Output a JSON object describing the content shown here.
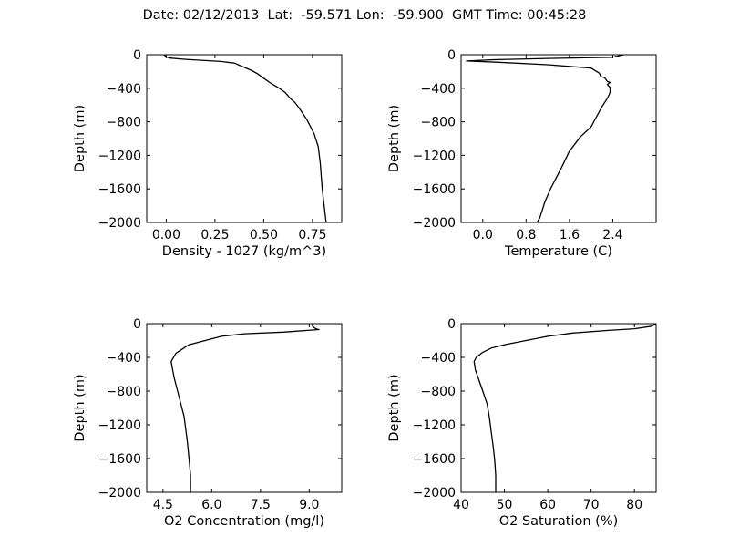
{
  "figure": {
    "title": "Date: 02/12/2013  Lat:  -59.571 Lon:  -59.900  GMT Time: 00:45:28"
  },
  "chart_data": [
    {
      "type": "line",
      "xlabel": "Density - 1027 (kg/m^3)",
      "ylabel": "Depth (m)",
      "xlim": [
        -0.1,
        0.9
      ],
      "ylim": [
        -2000,
        0
      ],
      "xticks": [
        0.0,
        0.25,
        0.5,
        0.75
      ],
      "xtick_labels": [
        "0.00",
        "0.25",
        "0.50",
        "0.75"
      ],
      "yticks": [
        0,
        -400,
        -800,
        -1200,
        -1600,
        -2000
      ],
      "ytick_labels": [
        "0",
        "−400",
        "−800",
        "−1200",
        "−1600",
        "−2000"
      ],
      "series": [
        {
          "color": "#000000",
          "points": [
            [
              -0.01,
              0
            ],
            [
              -0.01,
              -5
            ],
            [
              0.0,
              -25
            ],
            [
              0.02,
              -40
            ],
            [
              0.1,
              -55
            ],
            [
              0.17,
              -65
            ],
            [
              0.28,
              -80
            ],
            [
              0.35,
              -100
            ],
            [
              0.38,
              -130
            ],
            [
              0.44,
              -190
            ],
            [
              0.47,
              -230
            ],
            [
              0.5,
              -280
            ],
            [
              0.53,
              -330
            ],
            [
              0.58,
              -400
            ],
            [
              0.61,
              -450
            ],
            [
              0.64,
              -530
            ],
            [
              0.66,
              -570
            ],
            [
              0.68,
              -630
            ],
            [
              0.7,
              -700
            ],
            [
              0.72,
              -770
            ],
            [
              0.74,
              -860
            ],
            [
              0.76,
              -950
            ],
            [
              0.78,
              -1100
            ],
            [
              0.79,
              -1300
            ],
            [
              0.8,
              -1600
            ],
            [
              0.81,
              -1800
            ],
            [
              0.82,
              -2000
            ]
          ]
        }
      ]
    },
    {
      "type": "line",
      "xlabel": "Temperature (C)",
      "ylabel": "Depth (m)",
      "xlim": [
        -0.4,
        3.2
      ],
      "ylim": [
        -2000,
        0
      ],
      "xticks": [
        0.0,
        0.8,
        1.6,
        2.4
      ],
      "xtick_labels": [
        "0.0",
        "0.8",
        "1.6",
        "2.4"
      ],
      "yticks": [
        0,
        -400,
        -800,
        -1200,
        -1600,
        -2000
      ],
      "ytick_labels": [
        "0",
        "−400",
        "−800",
        "−1200",
        "−1600",
        "−2000"
      ],
      "series": [
        {
          "color": "#000000",
          "points": [
            [
              2.6,
              0
            ],
            [
              2.5,
              -15
            ],
            [
              2.4,
              -30
            ],
            [
              1.2,
              -45
            ],
            [
              0.2,
              -60
            ],
            [
              -0.3,
              -75
            ],
            [
              0.3,
              -90
            ],
            [
              1.2,
              -120
            ],
            [
              2.0,
              -160
            ],
            [
              2.15,
              -220
            ],
            [
              2.18,
              -260
            ],
            [
              2.25,
              -275
            ],
            [
              2.3,
              -320
            ],
            [
              2.35,
              -330
            ],
            [
              2.3,
              -355
            ],
            [
              2.35,
              -390
            ],
            [
              2.35,
              -450
            ],
            [
              2.3,
              -520
            ],
            [
              2.2,
              -620
            ],
            [
              2.1,
              -740
            ],
            [
              2.0,
              -860
            ],
            [
              1.8,
              -980
            ],
            [
              1.6,
              -1150
            ],
            [
              1.45,
              -1350
            ],
            [
              1.25,
              -1600
            ],
            [
              1.15,
              -1750
            ],
            [
              1.1,
              -1850
            ],
            [
              1.05,
              -1950
            ],
            [
              1.0,
              -2000
            ]
          ]
        }
      ]
    },
    {
      "type": "line",
      "xlabel": "O2 Concentration (mg/l)",
      "ylabel": "Depth (m)",
      "xlim": [
        4.0,
        10.0
      ],
      "ylim": [
        -2000,
        0
      ],
      "xticks": [
        4.5,
        6.0,
        7.5,
        9.0
      ],
      "xtick_labels": [
        "4.5",
        "6.0",
        "7.5",
        "9.0"
      ],
      "yticks": [
        0,
        -400,
        -800,
        -1200,
        -1600,
        -2000
      ],
      "ytick_labels": [
        "0",
        "−400",
        "−800",
        "−1200",
        "−1600",
        "−2000"
      ],
      "series": [
        {
          "color": "#000000",
          "points": [
            [
              9.1,
              0
            ],
            [
              9.1,
              -30
            ],
            [
              9.2,
              -60
            ],
            [
              9.3,
              -70
            ],
            [
              8.2,
              -100
            ],
            [
              7.0,
              -120
            ],
            [
              6.3,
              -150
            ],
            [
              5.8,
              -200
            ],
            [
              5.3,
              -250
            ],
            [
              5.1,
              -300
            ],
            [
              4.9,
              -350
            ],
            [
              4.75,
              -450
            ],
            [
              4.8,
              -550
            ],
            [
              4.85,
              -650
            ],
            [
              4.95,
              -800
            ],
            [
              5.05,
              -950
            ],
            [
              5.15,
              -1100
            ],
            [
              5.2,
              -1250
            ],
            [
              5.25,
              -1400
            ],
            [
              5.3,
              -1600
            ],
            [
              5.35,
              -1800
            ],
            [
              5.35,
              -2000
            ]
          ]
        }
      ]
    },
    {
      "type": "line",
      "xlabel": "O2 Saturation (%)",
      "ylabel": "Depth (m)",
      "xlim": [
        40,
        85
      ],
      "ylim": [
        -2000,
        0
      ],
      "xticks": [
        40,
        50,
        60,
        70,
        80
      ],
      "xtick_labels": [
        "40",
        "50",
        "60",
        "70",
        "80"
      ],
      "yticks": [
        0,
        -400,
        -800,
        -1200,
        -1600,
        -2000
      ],
      "ytick_labels": [
        "0",
        "−400",
        "−800",
        "−1200",
        "−1600",
        "−2000"
      ],
      "series": [
        {
          "color": "#000000",
          "points": [
            [
              85,
              0
            ],
            [
              84,
              -30
            ],
            [
              80,
              -60
            ],
            [
              74,
              -80
            ],
            [
              66,
              -110
            ],
            [
              60,
              -150
            ],
            [
              55,
              -200
            ],
            [
              50,
              -250
            ],
            [
              47,
              -290
            ],
            [
              45,
              -340
            ],
            [
              43.5,
              -400
            ],
            [
              43,
              -450
            ],
            [
              43.3,
              -550
            ],
            [
              44,
              -650
            ],
            [
              45,
              -800
            ],
            [
              46,
              -950
            ],
            [
              46.5,
              -1100
            ],
            [
              47,
              -1300
            ],
            [
              47.5,
              -1500
            ],
            [
              47.8,
              -1650
            ],
            [
              48,
              -1800
            ],
            [
              48,
              -2000
            ]
          ]
        }
      ]
    }
  ]
}
